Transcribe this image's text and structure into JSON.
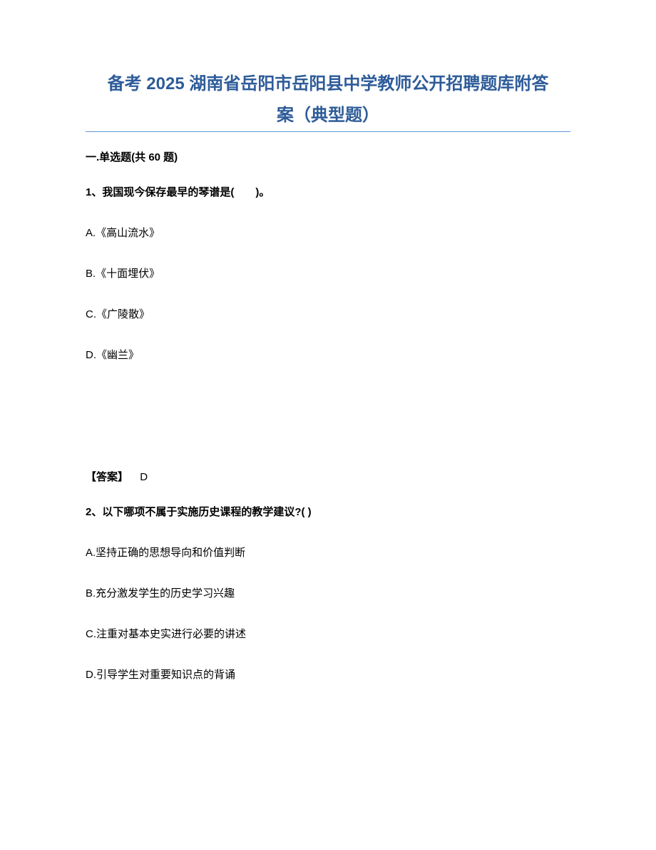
{
  "title_line1": "备考 2025 湖南省岳阳市岳阳县中学教师公开招聘题库附答",
  "title_line2": "案（典型题）",
  "section_header": "一.单选题(共 60 题)",
  "q1": {
    "text": "1、我国现今保存最早的琴谱是(　　)。",
    "optA": "A.《高山流水》",
    "optB": "B.《十面埋伏》",
    "optC": "C.《广陵散》",
    "optD": "D.《幽兰》",
    "answer_label": "【答案】",
    "answer_value": "D"
  },
  "q2": {
    "text": "2、以下哪项不属于实施历史课程的教学建议?( )",
    "optA": "A.坚持正确的思想导向和价值判断",
    "optB": "B.充分激发学生的历史学习兴趣",
    "optC": "C.注重对基本史实进行必要的讲述",
    "optD": "D.引导学生对重要知识点的背诵"
  }
}
